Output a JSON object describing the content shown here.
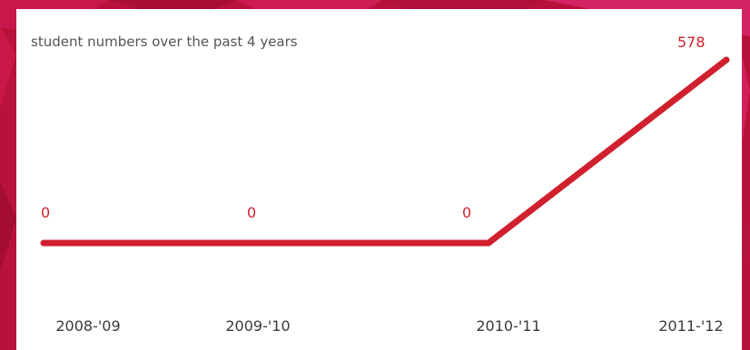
{
  "chart_data": {
    "type": "line",
    "title": "student numbers over the past 4 years",
    "categories": [
      "2008-'09",
      "2009-'10",
      "2010-'11",
      "2011-'12"
    ],
    "series": [
      {
        "values": [
          0,
          0,
          0,
          578
        ]
      }
    ],
    "data_labels": [
      "0",
      "0",
      "0",
      "578"
    ],
    "line_color": "#d0202e",
    "grid": false,
    "legend": "none"
  },
  "colors": {
    "background": "#b8123b",
    "card": "#ffffff",
    "accent": "#d0202e"
  }
}
